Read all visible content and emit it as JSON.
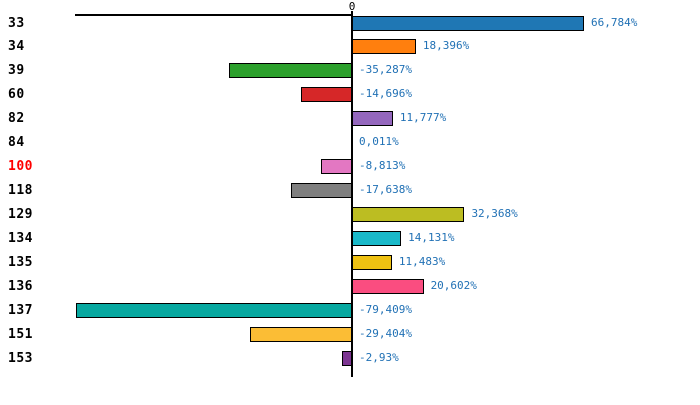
{
  "chart_data": {
    "type": "bar",
    "orientation": "horizontal",
    "title": "",
    "xlabel": "",
    "ylabel": "",
    "categories": [
      "33",
      "34",
      "39",
      "60",
      "82",
      "84",
      "100",
      "118",
      "129",
      "134",
      "135",
      "136",
      "137",
      "151",
      "153"
    ],
    "values": [
      66.784,
      18.396,
      -35.287,
      -14.696,
      11.777,
      0.011,
      -8.813,
      -17.638,
      32.368,
      14.131,
      11.483,
      20.602,
      -79.409,
      -29.404,
      -2.93
    ],
    "value_labels": [
      "66,784%",
      "18,396%",
      "-35,287%",
      "-14,696%",
      "11,777%",
      "0,011%",
      "-8,813%",
      "-17,638%",
      "32,368%",
      "14,131%",
      "11,483%",
      "20,602%",
      "-79,409%",
      "-29,404%",
      "-2,93%"
    ],
    "bar_colors": [
      "#1f77b4",
      "#ff7f0e",
      "#2ca02c",
      "#d62728",
      "#9467bd",
      null,
      "#e377c2",
      "#7f7f7f",
      "#bcbd22",
      "#1ab9c9",
      "#eec112",
      "#fa4d80",
      "#07a8a0",
      "#fbbd35",
      "#7c3591"
    ],
    "highlighted_category": "100",
    "highlight_color": "#ff0000",
    "category_color": "#000000",
    "value_label_color": "#2171b5",
    "axis": {
      "zero_label": "0",
      "baseline_color": "#000000",
      "xlim": [
        -80,
        100
      ],
      "grid": false,
      "legend": "none"
    }
  }
}
